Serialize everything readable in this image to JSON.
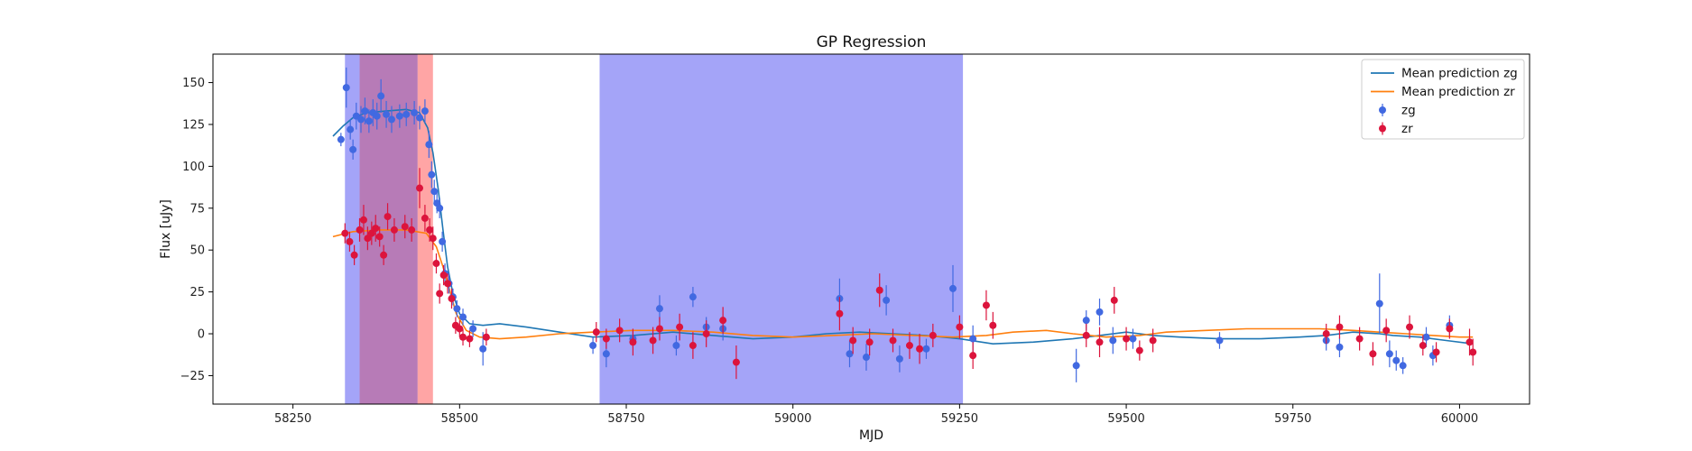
{
  "chart_data": {
    "type": "scatter",
    "title": "GP Regression",
    "xlabel": "MJD",
    "ylabel": "Flux [uJy]",
    "xlim": [
      58130,
      60105
    ],
    "ylim": [
      -42,
      167
    ],
    "xticks": [
      58250,
      58500,
      58750,
      59000,
      59250,
      59500,
      59750,
      60000
    ],
    "yticks": [
      -25,
      0,
      25,
      50,
      75,
      100,
      125,
      150
    ],
    "legend_position": "top-right",
    "shaded_regions": [
      {
        "x0": 58328,
        "x1": 58350,
        "color": "#4a4af2",
        "opacity": 0.5
      },
      {
        "x0": 58350,
        "x1": 58437,
        "color": "#8b2a8a",
        "opacity": 0.62
      },
      {
        "x0": 58437,
        "x1": 58460,
        "color": "#ff4b4b",
        "opacity": 0.5
      },
      {
        "x0": 58710,
        "x1": 59255,
        "color": "#4a4af2",
        "opacity": 0.5
      }
    ],
    "series": [
      {
        "name": "Mean prediction zg",
        "kind": "line",
        "color": "#1f77b4",
        "points": [
          [
            58310,
            118
          ],
          [
            58325,
            124
          ],
          [
            58340,
            129
          ],
          [
            58360,
            132
          ],
          [
            58390,
            133
          ],
          [
            58420,
            134
          ],
          [
            58440,
            132
          ],
          [
            58452,
            123
          ],
          [
            58460,
            108
          ],
          [
            58468,
            86
          ],
          [
            58475,
            62
          ],
          [
            58482,
            40
          ],
          [
            58490,
            24
          ],
          [
            58500,
            12
          ],
          [
            58515,
            6
          ],
          [
            58535,
            5
          ],
          [
            58560,
            6
          ],
          [
            58600,
            4
          ],
          [
            58650,
            1
          ],
          [
            58700,
            -2
          ],
          [
            58760,
            -1
          ],
          [
            58820,
            1
          ],
          [
            58880,
            -1
          ],
          [
            58940,
            -3
          ],
          [
            59000,
            -2
          ],
          [
            59050,
            0
          ],
          [
            59100,
            1
          ],
          [
            59150,
            0
          ],
          [
            59200,
            -1
          ],
          [
            59250,
            -3
          ],
          [
            59300,
            -6
          ],
          [
            59360,
            -5
          ],
          [
            59420,
            -3
          ],
          [
            59460,
            -1
          ],
          [
            59500,
            1
          ],
          [
            59540,
            -1
          ],
          [
            59580,
            -2
          ],
          [
            59640,
            -3
          ],
          [
            59700,
            -3
          ],
          [
            59760,
            -2
          ],
          [
            59800,
            -1
          ],
          [
            59840,
            1
          ],
          [
            59880,
            0
          ],
          [
            59900,
            -1
          ],
          [
            59940,
            -2
          ],
          [
            59980,
            -4
          ],
          [
            60020,
            -6
          ]
        ]
      },
      {
        "name": "Mean prediction zr",
        "kind": "line",
        "color": "#ff7f0e",
        "points": [
          [
            58310,
            58
          ],
          [
            58340,
            61
          ],
          [
            58380,
            62
          ],
          [
            58420,
            62
          ],
          [
            58450,
            60
          ],
          [
            58465,
            52
          ],
          [
            58475,
            40
          ],
          [
            58485,
            26
          ],
          [
            58495,
            12
          ],
          [
            58510,
            2
          ],
          [
            58530,
            -2
          ],
          [
            58560,
            -3
          ],
          [
            58600,
            -2
          ],
          [
            58650,
            0
          ],
          [
            58700,
            1
          ],
          [
            58760,
            2
          ],
          [
            58820,
            2
          ],
          [
            58880,
            1
          ],
          [
            58940,
            -1
          ],
          [
            59000,
            -2
          ],
          [
            59060,
            -1
          ],
          [
            59120,
            0
          ],
          [
            59180,
            -1
          ],
          [
            59240,
            -2
          ],
          [
            59290,
            -1
          ],
          [
            59330,
            1
          ],
          [
            59380,
            2
          ],
          [
            59420,
            0
          ],
          [
            59470,
            -2
          ],
          [
            59520,
            -1
          ],
          [
            59560,
            1
          ],
          [
            59620,
            2
          ],
          [
            59680,
            3
          ],
          [
            59740,
            3
          ],
          [
            59790,
            3
          ],
          [
            59840,
            2
          ],
          [
            59880,
            1
          ],
          [
            59920,
            0
          ],
          [
            59960,
            -1
          ],
          [
            60000,
            -2
          ],
          [
            60020,
            -2
          ]
        ]
      },
      {
        "name": "zg",
        "kind": "errorbar",
        "color": "#4169e1",
        "points": [
          [
            58322,
            116,
            4
          ],
          [
            58330,
            147,
            12
          ],
          [
            58336,
            122,
            6
          ],
          [
            58340,
            110,
            6
          ],
          [
            58345,
            130,
            8
          ],
          [
            58352,
            128,
            8
          ],
          [
            58358,
            133,
            8
          ],
          [
            58364,
            127,
            7
          ],
          [
            58370,
            132,
            8
          ],
          [
            58376,
            130,
            8
          ],
          [
            58382,
            142,
            10
          ],
          [
            58390,
            131,
            8
          ],
          [
            58398,
            128,
            8
          ],
          [
            58410,
            130,
            7
          ],
          [
            58420,
            131,
            7
          ],
          [
            58432,
            132,
            7
          ],
          [
            58440,
            129,
            7
          ],
          [
            58448,
            133,
            7
          ],
          [
            58454,
            113,
            8
          ],
          [
            58458,
            95,
            8
          ],
          [
            58462,
            85,
            7
          ],
          [
            58466,
            78,
            6
          ],
          [
            58470,
            75,
            6
          ],
          [
            58474,
            55,
            6
          ],
          [
            58478,
            36,
            6
          ],
          [
            58484,
            30,
            6
          ],
          [
            58490,
            22,
            5
          ],
          [
            58496,
            15,
            5
          ],
          [
            58505,
            10,
            5
          ],
          [
            58520,
            3,
            5
          ],
          [
            58535,
            -9,
            10
          ],
          [
            58700,
            -7,
            5
          ],
          [
            58720,
            -12,
            8
          ],
          [
            58760,
            -3,
            5
          ],
          [
            58800,
            15,
            8
          ],
          [
            58825,
            -7,
            6
          ],
          [
            58850,
            22,
            6
          ],
          [
            58870,
            4,
            6
          ],
          [
            58895,
            3,
            7
          ],
          [
            59070,
            21,
            12
          ],
          [
            59085,
            -12,
            8
          ],
          [
            59110,
            -14,
            8
          ],
          [
            59140,
            20,
            9
          ],
          [
            59160,
            -15,
            8
          ],
          [
            59200,
            -9,
            6
          ],
          [
            59240,
            27,
            14
          ],
          [
            59270,
            -3,
            8
          ],
          [
            59425,
            -19,
            10
          ],
          [
            59440,
            8,
            6
          ],
          [
            59460,
            13,
            8
          ],
          [
            59480,
            -4,
            8
          ],
          [
            59510,
            -3,
            6
          ],
          [
            59640,
            -4,
            5
          ],
          [
            59800,
            -4,
            6
          ],
          [
            59820,
            -8,
            6
          ],
          [
            59880,
            18,
            18
          ],
          [
            59895,
            -12,
            8
          ],
          [
            59905,
            -16,
            6
          ],
          [
            59915,
            -19,
            5
          ],
          [
            59950,
            -2,
            6
          ],
          [
            59960,
            -13,
            6
          ],
          [
            59985,
            5,
            6
          ]
        ]
      },
      {
        "name": "zr",
        "kind": "errorbar",
        "color": "#dc143c",
        "points": [
          [
            58328,
            60,
            6
          ],
          [
            58335,
            55,
            6
          ],
          [
            58342,
            47,
            6
          ],
          [
            58350,
            62,
            7
          ],
          [
            58356,
            68,
            9
          ],
          [
            58362,
            57,
            7
          ],
          [
            58368,
            60,
            7
          ],
          [
            58374,
            63,
            8
          ],
          [
            58380,
            58,
            6
          ],
          [
            58386,
            47,
            6
          ],
          [
            58392,
            70,
            8
          ],
          [
            58402,
            62,
            7
          ],
          [
            58418,
            64,
            7
          ],
          [
            58428,
            62,
            7
          ],
          [
            58440,
            87,
            12
          ],
          [
            58448,
            69,
            8
          ],
          [
            58455,
            62,
            7
          ],
          [
            58460,
            57,
            7
          ],
          [
            58465,
            42,
            6
          ],
          [
            58470,
            24,
            6
          ],
          [
            58476,
            35,
            6
          ],
          [
            58482,
            30,
            6
          ],
          [
            58488,
            21,
            6
          ],
          [
            58494,
            5,
            5
          ],
          [
            58500,
            3,
            5
          ],
          [
            58505,
            -2,
            5
          ],
          [
            58515,
            -3,
            5
          ],
          [
            58540,
            -2,
            5
          ],
          [
            58705,
            1,
            6
          ],
          [
            58720,
            -3,
            6
          ],
          [
            58740,
            2,
            7
          ],
          [
            58760,
            -5,
            8
          ],
          [
            58790,
            -4,
            8
          ],
          [
            58800,
            3,
            7
          ],
          [
            58830,
            4,
            8
          ],
          [
            58850,
            -7,
            8
          ],
          [
            58870,
            0,
            8
          ],
          [
            58895,
            8,
            8
          ],
          [
            58915,
            -17,
            10
          ],
          [
            59070,
            12,
            10
          ],
          [
            59090,
            -4,
            8
          ],
          [
            59115,
            -5,
            8
          ],
          [
            59130,
            26,
            10
          ],
          [
            59150,
            -4,
            7
          ],
          [
            59175,
            -7,
            8
          ],
          [
            59190,
            -9,
            9
          ],
          [
            59210,
            -1,
            7
          ],
          [
            59250,
            4,
            7
          ],
          [
            59270,
            -13,
            8
          ],
          [
            59290,
            17,
            9
          ],
          [
            59300,
            5,
            8
          ],
          [
            59440,
            -1,
            7
          ],
          [
            59460,
            -5,
            9
          ],
          [
            59482,
            20,
            8
          ],
          [
            59500,
            -3,
            7
          ],
          [
            59520,
            -10,
            6
          ],
          [
            59540,
            -4,
            7
          ],
          [
            59800,
            0,
            6
          ],
          [
            59820,
            4,
            7
          ],
          [
            59850,
            -3,
            7
          ],
          [
            59870,
            -12,
            7
          ],
          [
            59890,
            2,
            7
          ],
          [
            59925,
            4,
            7
          ],
          [
            59945,
            -7,
            6
          ],
          [
            59965,
            -11,
            6
          ],
          [
            59985,
            3,
            6
          ],
          [
            60015,
            -5,
            8
          ],
          [
            60020,
            -11,
            8
          ]
        ]
      }
    ]
  }
}
